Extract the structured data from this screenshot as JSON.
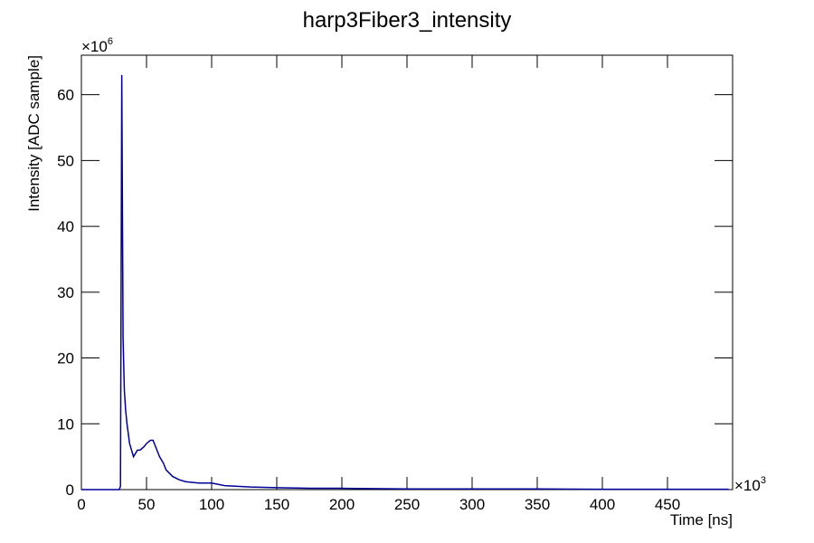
{
  "chart_data": {
    "type": "line",
    "title": "harp3Fiber3_intensity",
    "x_label": "Time [ns]",
    "y_label": "Intensity [ADC sample]",
    "x_multiplier": {
      "base": "×10",
      "exponent": "3"
    },
    "y_multiplier": {
      "base": "×10",
      "exponent": "6"
    },
    "x": [
      0,
      29,
      30,
      31,
      32,
      33,
      34,
      35,
      37,
      40,
      43,
      45,
      48,
      50,
      53,
      55,
      58,
      60,
      63,
      65,
      70,
      75,
      80,
      90,
      100,
      110,
      120,
      130,
      150,
      175,
      200,
      250,
      300,
      350,
      400,
      450,
      497
    ],
    "series": [
      {
        "name": "harp3Fiber3_intensity",
        "color": "#000099",
        "values": [
          0,
          0,
          0.5,
          63,
          23,
          15,
          12,
          10,
          7,
          5,
          6,
          6,
          6.5,
          7,
          7.5,
          7.5,
          6,
          5,
          4,
          3,
          2,
          1.5,
          1.2,
          1,
          1,
          0.6,
          0.5,
          0.4,
          0.3,
          0.2,
          0.2,
          0.1,
          0.1,
          0.1,
          0.05,
          0.05,
          0.05
        ]
      }
    ],
    "xlim": [
      0,
      500
    ],
    "xticks": [
      0,
      50,
      100,
      150,
      200,
      250,
      300,
      350,
      400,
      450
    ],
    "ylim": [
      0,
      66
    ],
    "yticks": [
      0,
      10,
      20,
      30,
      40,
      50,
      60
    ],
    "grid": false
  }
}
